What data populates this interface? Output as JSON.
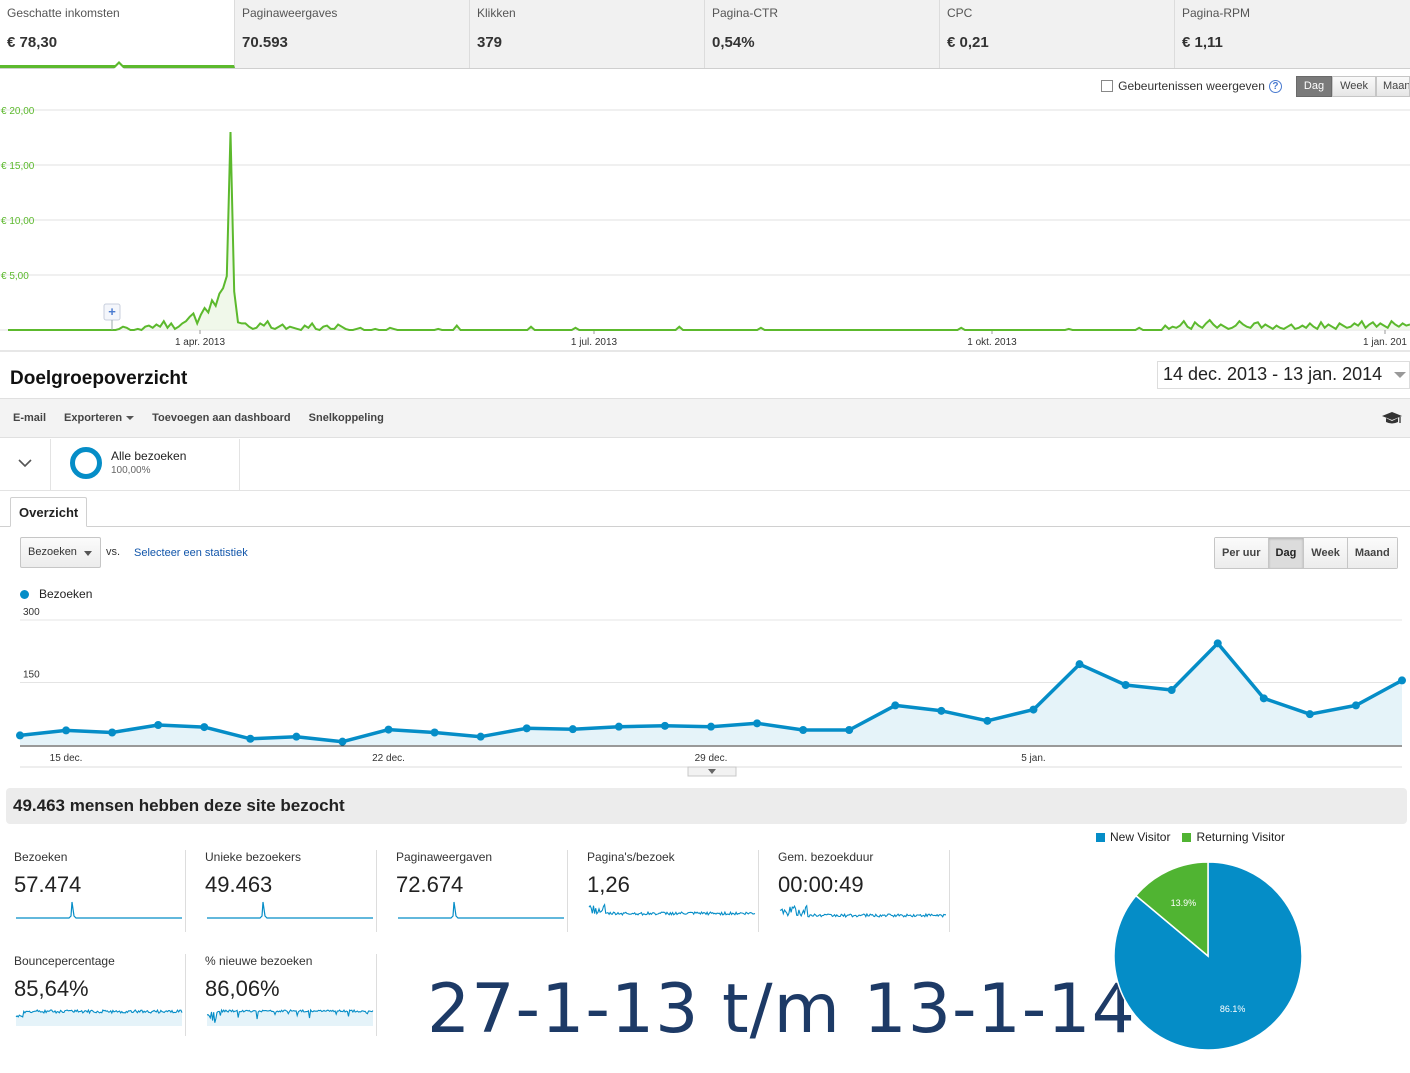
{
  "adsense": {
    "tabs": [
      {
        "label": "Geschatte inkomsten",
        "value": "€ 78,30",
        "active": true
      },
      {
        "label": "Paginaweergaves",
        "value": "70.593",
        "active": false
      },
      {
        "label": "Klikken",
        "value": "379",
        "active": false
      },
      {
        "label": "Pagina-CTR",
        "value": "0,54%",
        "active": false
      },
      {
        "label": "CPC",
        "value": "€ 0,21",
        "active": false
      },
      {
        "label": "Pagina-RPM",
        "value": "€ 1,11",
        "active": false
      }
    ],
    "events_label": "Gebeurtenissen weergeven",
    "help_icon": "?",
    "granularity": [
      "Dag",
      "Week",
      "Maand"
    ],
    "granularity_selected": "Dag",
    "add_annotation_icon": "+",
    "chart": {
      "type": "line",
      "color": "#5cb92d",
      "y_ticks": [
        "€ 5,00",
        "€ 10,00",
        "€ 15,00",
        "€ 20,00"
      ],
      "y_range": [
        0,
        20
      ],
      "x_labels": [
        "1 apr. 2013",
        "1 jul. 2013",
        "1 okt. 2013",
        "1 jan. 201"
      ]
    }
  },
  "analytics": {
    "title": "Doelgroepoverzicht",
    "date_range": "14 dec. 2013 - 13 jan. 2014",
    "toolbar": [
      "E-mail",
      "Exporteren",
      "Toevoegen aan dashboard",
      "Snelkoppeling"
    ],
    "segment": {
      "name": "Alle bezoeken",
      "percent": "100,00%"
    },
    "tab": "Overzicht",
    "metric_select": "Bezoeken",
    "vs": "vs.",
    "select_stat": "Selecteer een statistiek",
    "periods": [
      "Per uur",
      "Dag",
      "Week",
      "Maand"
    ],
    "period_selected": "Dag",
    "legend": "Bezoeken",
    "visitors_summary": "49.463 mensen hebben deze site bezocht",
    "kpis": [
      {
        "label": "Bezoeken",
        "value": "57.474"
      },
      {
        "label": "Unieke bezoekers",
        "value": "49.463"
      },
      {
        "label": "Paginaweergaven",
        "value": "72.674"
      },
      {
        "label": "Pagina's/bezoek",
        "value": "1,26"
      },
      {
        "label": "Gem. bezoekduur",
        "value": "00:00:49"
      },
      {
        "label": "Bouncepercentage",
        "value": "85,64%"
      },
      {
        "label": "% nieuwe bezoeken",
        "value": "86,06%"
      }
    ],
    "overlay_text": "27-1-13 t/m 13-1-14",
    "pie": {
      "legend": [
        {
          "label": "New Visitor",
          "color": "#058dc7"
        },
        {
          "label": "Returning Visitor",
          "color": "#50b432"
        }
      ],
      "slices": [
        {
          "label": "86.1%",
          "value": 86.1,
          "color": "#058dc7"
        },
        {
          "label": "13.9%",
          "value": 13.9,
          "color": "#50b432"
        }
      ]
    }
  },
  "chart_data": [
    {
      "type": "line",
      "title": "",
      "xlabel": "",
      "ylabel": "",
      "x_ticks": [
        "1 apr. 2013",
        "1 jul. 2013",
        "1 okt. 2013",
        "1 jan. 201"
      ],
      "ylim": [
        0,
        20
      ],
      "y_ticks": [
        "€ 5,00",
        "€ 10,00",
        "€ 15,00",
        "€ 20,00"
      ],
      "series": [
        {
          "values": [
            0,
            0,
            0,
            0,
            0,
            0,
            0,
            0,
            0,
            0,
            0,
            0,
            0,
            0,
            0,
            0,
            0,
            0,
            0,
            0,
            0,
            0,
            0,
            0,
            0,
            0,
            0,
            0,
            0,
            0,
            0.1,
            0.3,
            0.2,
            0,
            0,
            0.1,
            0,
            0.3,
            0.4,
            0.2,
            0.5,
            0.3,
            0.8,
            0.2,
            0.6,
            0.1,
            0.3,
            0.6,
            0.8,
            1.2,
            1.5,
            0.6,
            1.4,
            2.0,
            1.6,
            2.7,
            2.2,
            3.3,
            3.8,
            4.9,
            18.0,
            3.5,
            0.7,
            0.6,
            0.6,
            0.3,
            0.1,
            0.2,
            0.6,
            0.4,
            0.8,
            0.2,
            0.1,
            0.3,
            0.5,
            0.1,
            0.3,
            0.2,
            0.1,
            0,
            0.4,
            0.2,
            0.6,
            0.1,
            0,
            0.3,
            0.4,
            0.1,
            0.1,
            0.5,
            0.3,
            0.1,
            0,
            0,
            0.1,
            0.2,
            0,
            0,
            0,
            0.1,
            0,
            0,
            0,
            0.2,
            0.1,
            0,
            0,
            0,
            0,
            0,
            0,
            0,
            0,
            0,
            0,
            0,
            0.1,
            0,
            0,
            0,
            0,
            0.4,
            0,
            0,
            0,
            0,
            0,
            0,
            0,
            0,
            0,
            0,
            0,
            0,
            0,
            0,
            0,
            0,
            0,
            0,
            0,
            0.3,
            0,
            0,
            0,
            0,
            0,
            0,
            0,
            0,
            0,
            0,
            0,
            0.2,
            0,
            0,
            0,
            0,
            0,
            0,
            0,
            0,
            0,
            0,
            0,
            0,
            0,
            0,
            0,
            0,
            0,
            0,
            0,
            0,
            0,
            0,
            0,
            0,
            0,
            0,
            0,
            0.3,
            0,
            0,
            0,
            0,
            0,
            0,
            0,
            0,
            0,
            0,
            0,
            0,
            0,
            0,
            0,
            0,
            0,
            0,
            0,
            0,
            0,
            0.2,
            0,
            0,
            0,
            0,
            0,
            0,
            0,
            0,
            0,
            0,
            0,
            0,
            0,
            0,
            0,
            0,
            0,
            0,
            0,
            0,
            0,
            0,
            0,
            0,
            0,
            0,
            0,
            0,
            0,
            0,
            0,
            0,
            0,
            0,
            0,
            0,
            0,
            0,
            0,
            0,
            0,
            0,
            0,
            0,
            0,
            0,
            0,
            0,
            0,
            0,
            0,
            0,
            0,
            0.2,
            0,
            0,
            0,
            0,
            0,
            0,
            0,
            0,
            0,
            0,
            0,
            0,
            0,
            0,
            0,
            0,
            0,
            0,
            0,
            0,
            0,
            0,
            0,
            0,
            0,
            0,
            0,
            0,
            0.1,
            0,
            0,
            0,
            0,
            0,
            0,
            0,
            0,
            0,
            0,
            0,
            0,
            0,
            0,
            0,
            0,
            0,
            0,
            0.2,
            0,
            0,
            0,
            0,
            0,
            0,
            0.4,
            0.1,
            0.3,
            0.2,
            0.4,
            0.8,
            0.3,
            0.1,
            0.7,
            0.4,
            0.2,
            0.6,
            0.9,
            0.5,
            0.2,
            0.5,
            0.3,
            0.1,
            0.2,
            0.4,
            0.8,
            0.5,
            0.3,
            0.2,
            0.6,
            0.7,
            0.2,
            0.5,
            0.3,
            0.1,
            0.4,
            0.2,
            0.1,
            0.3,
            0.5,
            0.1,
            0.2,
            0.4,
            0.2,
            0.6,
            0.3,
            0.1,
            0.7,
            0.2,
            0.5,
            0.3,
            0.1,
            0.6,
            0.4,
            0.2,
            0.3,
            0.6,
            0.4,
            0.8,
            0.2,
            0.5,
            0.7,
            0.3,
            0.6,
            0.4,
            0.2,
            0.8,
            0.5,
            0.3,
            0.6,
            0.4,
            0.5
          ]
        }
      ]
    },
    {
      "type": "area",
      "title": "",
      "x": [
        "14 dec.",
        "15 dec.",
        "16 dec.",
        "17 dec.",
        "18 dec.",
        "19 dec.",
        "20 dec.",
        "21 dec.",
        "22 dec.",
        "23 dec.",
        "24 dec.",
        "25 dec.",
        "26 dec.",
        "27 dec.",
        "28 dec.",
        "29 dec.",
        "30 dec.",
        "31 dec.",
        "1 jan.",
        "2 jan.",
        "3 jan.",
        "4 jan.",
        "5 jan.",
        "6 jan.",
        "7 jan.",
        "8 jan.",
        "9 jan.",
        "10 jan.",
        "11 jan.",
        "12 jan.",
        "13 jan."
      ],
      "x_ticks": [
        "15 dec.",
        "22 dec.",
        "29 dec.",
        "5 jan."
      ],
      "y_ticks": [
        "150",
        "300"
      ],
      "ylim": [
        0,
        300
      ],
      "series": [
        {
          "name": "Bezoeken",
          "color": "#058dc7",
          "values": [
            23,
            35,
            30,
            48,
            43,
            15,
            20,
            8,
            37,
            30,
            20,
            40,
            38,
            44,
            46,
            44,
            52,
            36,
            36,
            95,
            82,
            58,
            85,
            194,
            144,
            132,
            244,
            112,
            74,
            95,
            155
          ]
        }
      ]
    },
    {
      "type": "pie",
      "title": "",
      "categories": [
        "New Visitor",
        "Returning Visitor"
      ],
      "values": [
        86.1,
        13.9
      ]
    }
  ]
}
